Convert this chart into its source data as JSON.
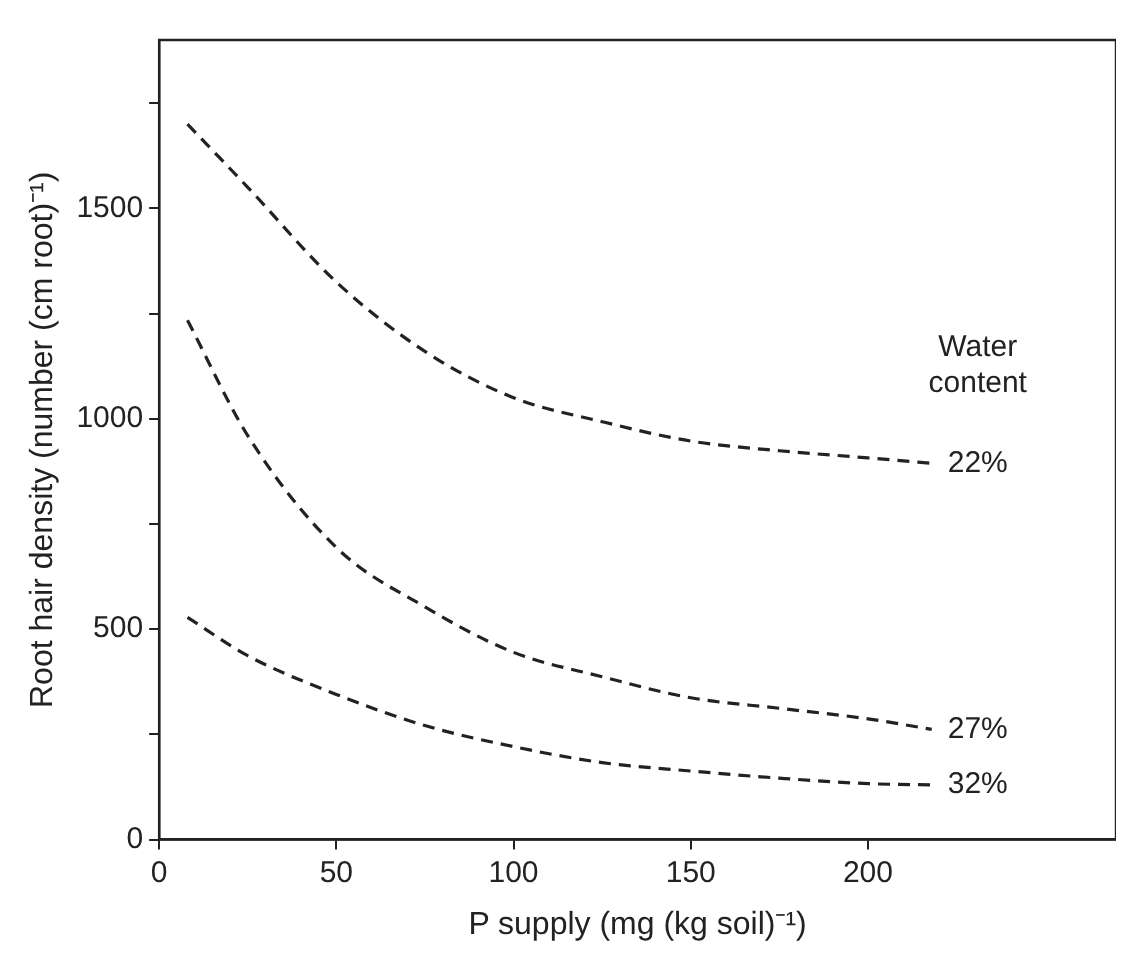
{
  "chart_data": {
    "type": "line",
    "xlabel": "P supply (mg (kg soil)⁻¹)",
    "ylabel": "Root hair density (number (cm root)⁻¹)",
    "legend_title": "Water content",
    "xlim": [
      0,
      270
    ],
    "xticks": [
      0,
      50,
      100,
      150,
      200
    ],
    "ylim": [
      0,
      1900
    ],
    "yticks": [
      0,
      {
        "value": 250,
        "label": null
      },
      500,
      {
        "value": 750,
        "label": null
      },
      1000,
      {
        "value": 1250,
        "label": null
      },
      1500,
      {
        "value": 1750,
        "label": null
      }
    ],
    "grid": false,
    "legend": false,
    "marker": "none",
    "line_style": "dashed",
    "x": [
      8,
      25,
      50,
      75,
      100,
      125,
      150,
      175,
      200,
      218
    ],
    "series": [
      {
        "name": "22%",
        "color": "#222222",
        "values": [
          1700,
          1550,
          1325,
          1160,
          1050,
          993,
          947,
          924,
          907,
          894
        ]
      },
      {
        "name": "27%",
        "color": "#222222",
        "values": [
          1234,
          960,
          694,
          553,
          445,
          387,
          337,
          312,
          287,
          262
        ]
      },
      {
        "name": "32%",
        "color": "#222222",
        "values": [
          528,
          437,
          345,
          271,
          221,
          183,
          163,
          146,
          133,
          130
        ]
      }
    ]
  }
}
